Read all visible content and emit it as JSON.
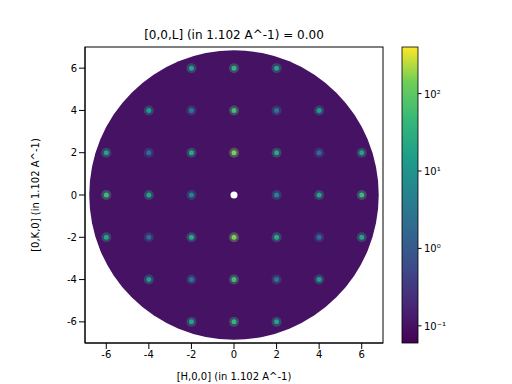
{
  "chart_data": {
    "type": "heatmap",
    "title": "[0,0,L] (in 1.102 A^-1) = 0.00",
    "x_label": "[H,0,0] (in 1.102 A^-1)",
    "y_label": "[0,K,0] (in 1.102 A^-1)",
    "xlim": [
      -7,
      7
    ],
    "ylim": [
      -7,
      7
    ],
    "xticks": [
      -6,
      -4,
      -2,
      0,
      2,
      4,
      6
    ],
    "yticks": [
      -6,
      -4,
      -2,
      0,
      2,
      4,
      6
    ],
    "disk_radius": 6.8,
    "background": 0.1,
    "masked": {
      "x": 0,
      "y": 0
    },
    "colorbar": {
      "lim": [
        0.06,
        400
      ],
      "log": true,
      "ticks": [
        {
          "value": 0.1,
          "label": "10⁻¹"
        },
        {
          "value": 1,
          "label": "10⁰"
        },
        {
          "value": 10,
          "label": "10¹"
        },
        {
          "value": 100,
          "label": "10²"
        }
      ]
    },
    "peaks": {
      "x": [
        0,
        0,
        0,
        0,
        0,
        0,
        2,
        -2,
        4,
        -4,
        6,
        -6,
        2,
        -2,
        2,
        -2,
        4,
        -4,
        4,
        -4,
        2,
        -2,
        2,
        -2,
        6,
        -6,
        6,
        -6,
        2,
        -2,
        2,
        -2,
        4,
        -4,
        4,
        -4
      ],
      "y": [
        2,
        -2,
        4,
        -4,
        6,
        -6,
        0,
        0,
        0,
        0,
        0,
        0,
        2,
        2,
        -2,
        -2,
        4,
        4,
        -4,
        -4,
        6,
        6,
        -6,
        -6,
        2,
        2,
        -2,
        -2,
        4,
        4,
        -4,
        -4,
        2,
        2,
        -2,
        -2
      ],
      "values": [
        150,
        150,
        60,
        60,
        40,
        40,
        5,
        5,
        20,
        20,
        50,
        50,
        25,
        25,
        25,
        25,
        15,
        15,
        15,
        15,
        20,
        20,
        20,
        20,
        20,
        20,
        20,
        20,
        3,
        3,
        3,
        3,
        2,
        2,
        2,
        2
      ]
    }
  }
}
